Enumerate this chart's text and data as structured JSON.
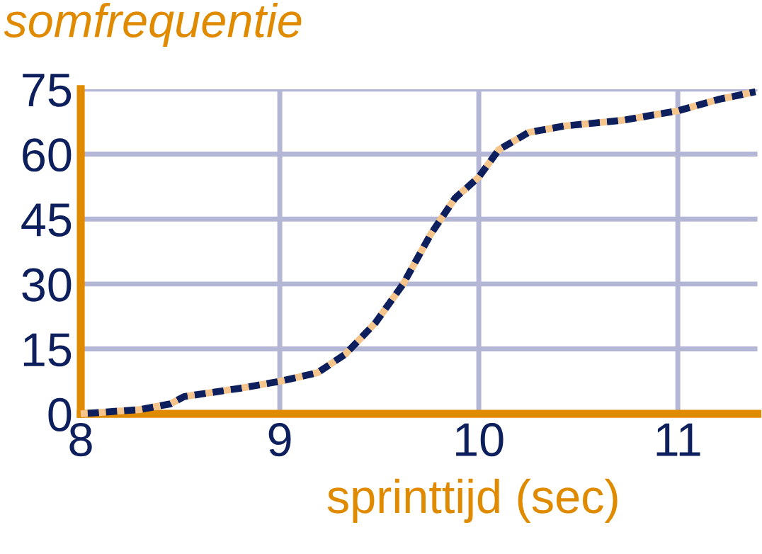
{
  "chart_data": {
    "type": "line",
    "ylabel": "somfrequentie",
    "xlabel": "sprinttijd (sec)",
    "xlim": [
      8,
      11.4
    ],
    "xticks": [
      8,
      9,
      10,
      11
    ],
    "ylim": [
      0,
      75
    ],
    "yticks": [
      0,
      15,
      30,
      45,
      60,
      75
    ],
    "grid": true,
    "line_style": "dotted",
    "marker": "none",
    "series": [
      {
        "color": "#f5c48a",
        "x": [
          8,
          8.3,
          8.45,
          8.52,
          8.8,
          9,
          9.19,
          9.33,
          9.48,
          9.62,
          9.76,
          9.88,
          10,
          10.1,
          10.25,
          10.43,
          10.72,
          11,
          11.21,
          11.39
        ],
        "values": [
          0,
          1,
          2.3,
          4,
          5.9,
          7.5,
          9.5,
          13.8,
          21,
          30,
          41.6,
          49.8,
          54.7,
          61,
          65,
          66.5,
          67.8,
          70,
          72.7,
          74.4
        ]
      }
    ]
  }
}
